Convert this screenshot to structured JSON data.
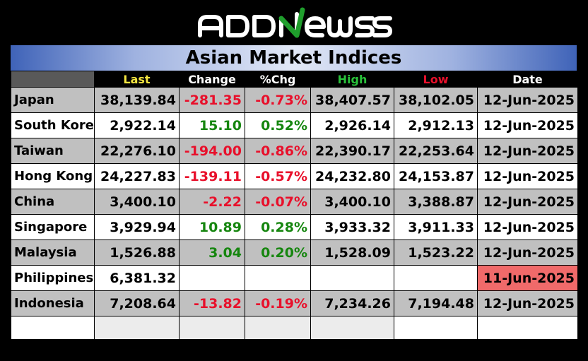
{
  "logo": {
    "text": "ADDNEWSS"
  },
  "title": "Asian Market Indices",
  "columns": [
    {
      "label": "Last",
      "color": "#f5e640"
    },
    {
      "label": "Change",
      "color": "#ffffff"
    },
    {
      "label": "%Chg",
      "color": "#ffffff"
    },
    {
      "label": "High",
      "color": "#29c23a"
    },
    {
      "label": "Low",
      "color": "#e8102b"
    },
    {
      "label": "Date",
      "color": "#ffffff"
    }
  ],
  "rows": [
    {
      "name": "Japan",
      "last": "38,139.84",
      "change": "-281.35",
      "pct": "-0.73%",
      "high": "38,407.57",
      "low": "38,102.05",
      "date": "12-Jun-2025",
      "dir": "neg"
    },
    {
      "name": "South Korea",
      "last": "2,922.14",
      "change": "15.10",
      "pct": "0.52%",
      "high": "2,926.14",
      "low": "2,912.13",
      "date": "12-Jun-2025",
      "dir": "pos"
    },
    {
      "name": "Taiwan",
      "last": "22,276.10",
      "change": "-194.00",
      "pct": "-0.86%",
      "high": "22,390.17",
      "low": "22,253.64",
      "date": "12-Jun-2025",
      "dir": "neg"
    },
    {
      "name": "Hong Kong",
      "last": "24,227.83",
      "change": "-139.11",
      "pct": "-0.57%",
      "high": "24,232.80",
      "low": "24,153.87",
      "date": "12-Jun-2025",
      "dir": "neg"
    },
    {
      "name": "China",
      "last": "3,400.10",
      "change": "-2.22",
      "pct": "-0.07%",
      "high": "3,400.10",
      "low": "3,388.87",
      "date": "12-Jun-2025",
      "dir": "neg"
    },
    {
      "name": "Singapore",
      "last": "3,929.94",
      "change": "10.89",
      "pct": "0.28%",
      "high": "3,933.32",
      "low": "3,911.33",
      "date": "12-Jun-2025",
      "dir": "pos"
    },
    {
      "name": "Malaysia",
      "last": "1,526.88",
      "change": "3.04",
      "pct": "0.20%",
      "high": "1,528.09",
      "low": "1,523.22",
      "date": "12-Jun-2025",
      "dir": "pos"
    },
    {
      "name": "Philippines",
      "last": "6,381.32",
      "change": "",
      "pct": "",
      "high": "",
      "low": "",
      "date": "11-Jun-2025",
      "dir": "none",
      "stale": true
    },
    {
      "name": "Indonesia",
      "last": "7,208.64",
      "change": "-13.82",
      "pct": "-0.19%",
      "high": "7,234.26",
      "low": "7,194.48",
      "date": "12-Jun-2025",
      "dir": "neg"
    }
  ],
  "colors": {
    "negative": "#e8102b",
    "positive": "#16860f",
    "stale_date": "#f06a6a",
    "logo_accent": "#1f9e2c"
  }
}
